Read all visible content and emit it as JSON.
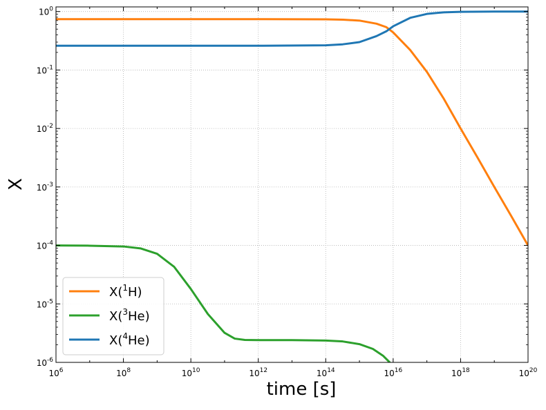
{
  "chart_data": {
    "type": "line",
    "xlabel": "time [s]",
    "ylabel": "X",
    "xscale": "log",
    "yscale": "log",
    "xlim": [
      1000000.0,
      1e+20
    ],
    "ylim": [
      1e-06,
      1.2
    ],
    "grid": true,
    "legend_position": "lower-left",
    "x_ticks": [
      {
        "base": "10",
        "exp": "6",
        "value": 1000000.0
      },
      {
        "base": "10",
        "exp": "8",
        "value": 100000000.0
      },
      {
        "base": "10",
        "exp": "10",
        "value": 10000000000.0
      },
      {
        "base": "10",
        "exp": "12",
        "value": 1000000000000.0
      },
      {
        "base": "10",
        "exp": "14",
        "value": 100000000000000.0
      },
      {
        "base": "10",
        "exp": "16",
        "value": 1e+16
      },
      {
        "base": "10",
        "exp": "18",
        "value": 1e+18
      },
      {
        "base": "10",
        "exp": "20",
        "value": 1e+20
      }
    ],
    "y_ticks": [
      {
        "base": "10",
        "exp": "-6",
        "value": 1e-06
      },
      {
        "base": "10",
        "exp": "-5",
        "value": 1e-05
      },
      {
        "base": "10",
        "exp": "-4",
        "value": 0.0001
      },
      {
        "base": "10",
        "exp": "-3",
        "value": 0.001
      },
      {
        "base": "10",
        "exp": "-2",
        "value": 0.01
      },
      {
        "base": "10",
        "exp": "-1",
        "value": 0.1
      },
      {
        "base": "10",
        "exp": "0",
        "value": 1
      }
    ],
    "series": [
      {
        "name_prefix": "X(",
        "name_sup": "1",
        "name_suffix": "H)",
        "color": "#ff7f0e",
        "x": [
          1000000.0,
          100000000.0,
          10000000000.0,
          1000000000000.0,
          100000000000000.0,
          320000000000000.0,
          1000000000000000.0,
          3200000000000000.0,
          6300000000000000.0,
          1e+16,
          3.2e+16,
          1e+17,
          3.2e+17,
          1e+18,
          3.2e+18,
          1e+19,
          3.2e+19,
          1e+20
        ],
        "y": [
          0.74,
          0.74,
          0.74,
          0.74,
          0.735,
          0.725,
          0.7,
          0.62,
          0.54,
          0.44,
          0.22,
          0.093,
          0.032,
          0.01,
          0.00316,
          0.001,
          0.000316,
          0.0001
        ]
      },
      {
        "name_prefix": "X(",
        "name_sup": "3",
        "name_suffix": "He)",
        "color": "#2ca02c",
        "x": [
          1000000.0,
          10000000.0,
          100000000.0,
          320000000.0,
          1000000000.0,
          3200000000.0,
          10000000000.0,
          32000000000.0,
          100000000000.0,
          200000000000.0,
          400000000000.0,
          1000000000000.0,
          10000000000000.0,
          100000000000000.0,
          320000000000000.0,
          1000000000000000.0,
          2500000000000000.0,
          5000000000000000.0,
          7900000000000000.0,
          1.3e+16
        ],
        "y": [
          0.0001,
          9.9e-05,
          9.6e-05,
          8.9e-05,
          7.2e-05,
          4.3e-05,
          1.8e-05,
          6.7e-06,
          3.2e-06,
          2.55e-06,
          2.42e-06,
          2.4e-06,
          2.4e-06,
          2.36e-06,
          2.28e-06,
          2.05e-06,
          1.7e-06,
          1.3e-06,
          1e-06,
          6e-07
        ]
      },
      {
        "name_prefix": "X(",
        "name_sup": "4",
        "name_suffix": "He)",
        "color": "#1f77b4",
        "x": [
          1000000.0,
          100000000.0,
          10000000000.0,
          1000000000000.0,
          100000000000000.0,
          320000000000000.0,
          1000000000000000.0,
          3200000000000000.0,
          6300000000000000.0,
          1e+16,
          3.2e+16,
          1e+17,
          3.2e+17,
          1e+18,
          1e+19,
          1e+20
        ],
        "y": [
          0.26,
          0.26,
          0.26,
          0.26,
          0.265,
          0.275,
          0.3,
          0.38,
          0.46,
          0.56,
          0.78,
          0.91,
          0.97,
          0.99,
          1.0,
          1.0
        ]
      }
    ]
  }
}
